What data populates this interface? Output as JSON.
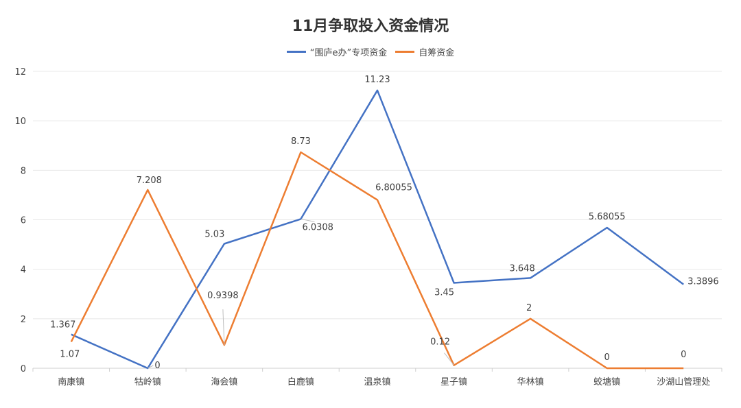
{
  "colors": {
    "series1": "#4472C4",
    "series2": "#ED7D31",
    "grid": "#e8e8e8",
    "axis": "#cfcfcf",
    "text": "#444444"
  },
  "chart_data": {
    "type": "line",
    "title": "11月争取投入资金情况",
    "xlabel": "",
    "ylabel": "",
    "ylim": [
      0,
      12
    ],
    "yticks": [
      0,
      2,
      4,
      6,
      8,
      10,
      12
    ],
    "grid": true,
    "legend_position": "top",
    "categories": [
      "南康镇",
      "牯岭镇",
      "海会镇",
      "白鹿镇",
      "温泉镇",
      "星子镇",
      "华林镇",
      "蛟塘镇",
      "沙湖山管理处"
    ],
    "series": [
      {
        "name": "“围庐e办”专项资金",
        "values": [
          1.367,
          0,
          5.03,
          6.0308,
          11.23,
          3.45,
          3.648,
          5.68055,
          3.3896
        ],
        "labels": [
          "1.367",
          "0",
          "5.03",
          "6.0308",
          "11.23",
          "3.45",
          "3.648",
          "5.68055",
          "3.3896"
        ]
      },
      {
        "name": "自筹资金",
        "values": [
          1.07,
          7.208,
          0.9398,
          8.73,
          6.80055,
          0.12,
          2,
          0,
          0
        ],
        "labels": [
          "1.07",
          "7.208",
          "0.9398",
          "8.73",
          "6.80055",
          "0.12",
          "2",
          "0",
          "0"
        ]
      }
    ]
  }
}
